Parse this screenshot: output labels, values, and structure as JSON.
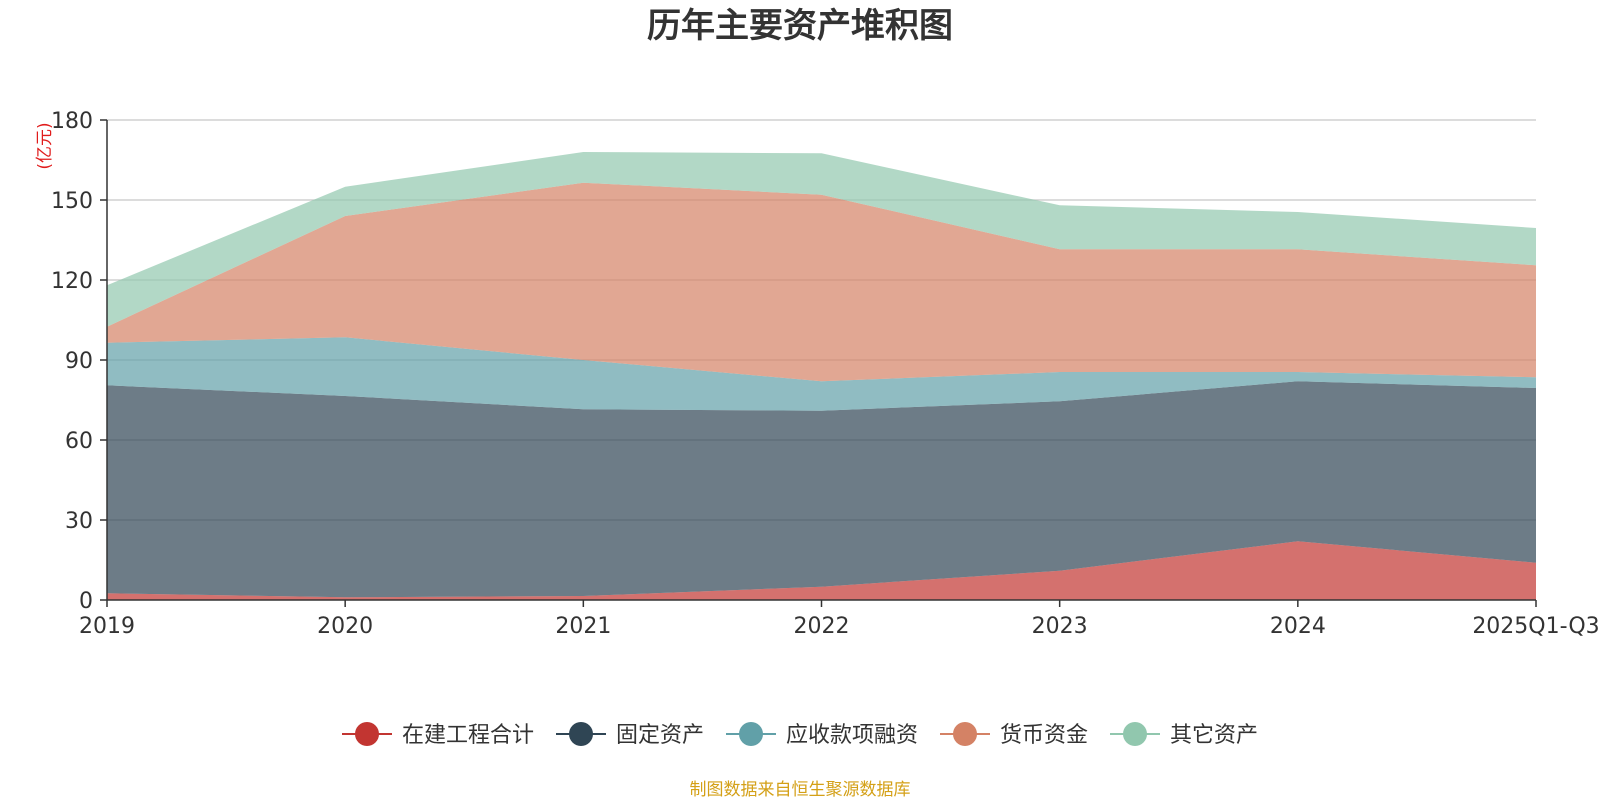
{
  "chart_data": {
    "type": "area",
    "stacked": true,
    "title": "历年主要资产堆积图",
    "ylabel": "(亿元)",
    "xlabel": "",
    "source": "制图数据来自恒生聚源数据库",
    "categories": [
      "2019",
      "2020",
      "2021",
      "2022",
      "2023",
      "2024",
      "2025Q1-Q3"
    ],
    "yticks": [
      0,
      30,
      60,
      90,
      120,
      150,
      180
    ],
    "ylim": [
      0,
      180
    ],
    "grid": true,
    "legend_position": "bottom",
    "series": [
      {
        "name": "在建工程合计",
        "color": "#c23531",
        "values": [
          2.5,
          1.0,
          1.5,
          5.0,
          11.0,
          22.0,
          14.0
        ]
      },
      {
        "name": "固定资产",
        "color": "#2f4554",
        "values": [
          78.0,
          75.5,
          70.0,
          66.0,
          63.5,
          60.0,
          65.5
        ]
      },
      {
        "name": "应收款项融资",
        "color": "#61a0a8",
        "values": [
          16.0,
          22.0,
          18.5,
          11.0,
          11.0,
          3.5,
          4.0
        ]
      },
      {
        "name": "货币资金",
        "color": "#d48265",
        "values": [
          6.0,
          45.5,
          66.5,
          70.0,
          46.0,
          46.0,
          42.0
        ]
      },
      {
        "name": "其它资产",
        "color": "#91c7ae",
        "values": [
          15.5,
          11.0,
          11.5,
          15.5,
          16.5,
          14.0,
          14.0
        ]
      }
    ]
  }
}
